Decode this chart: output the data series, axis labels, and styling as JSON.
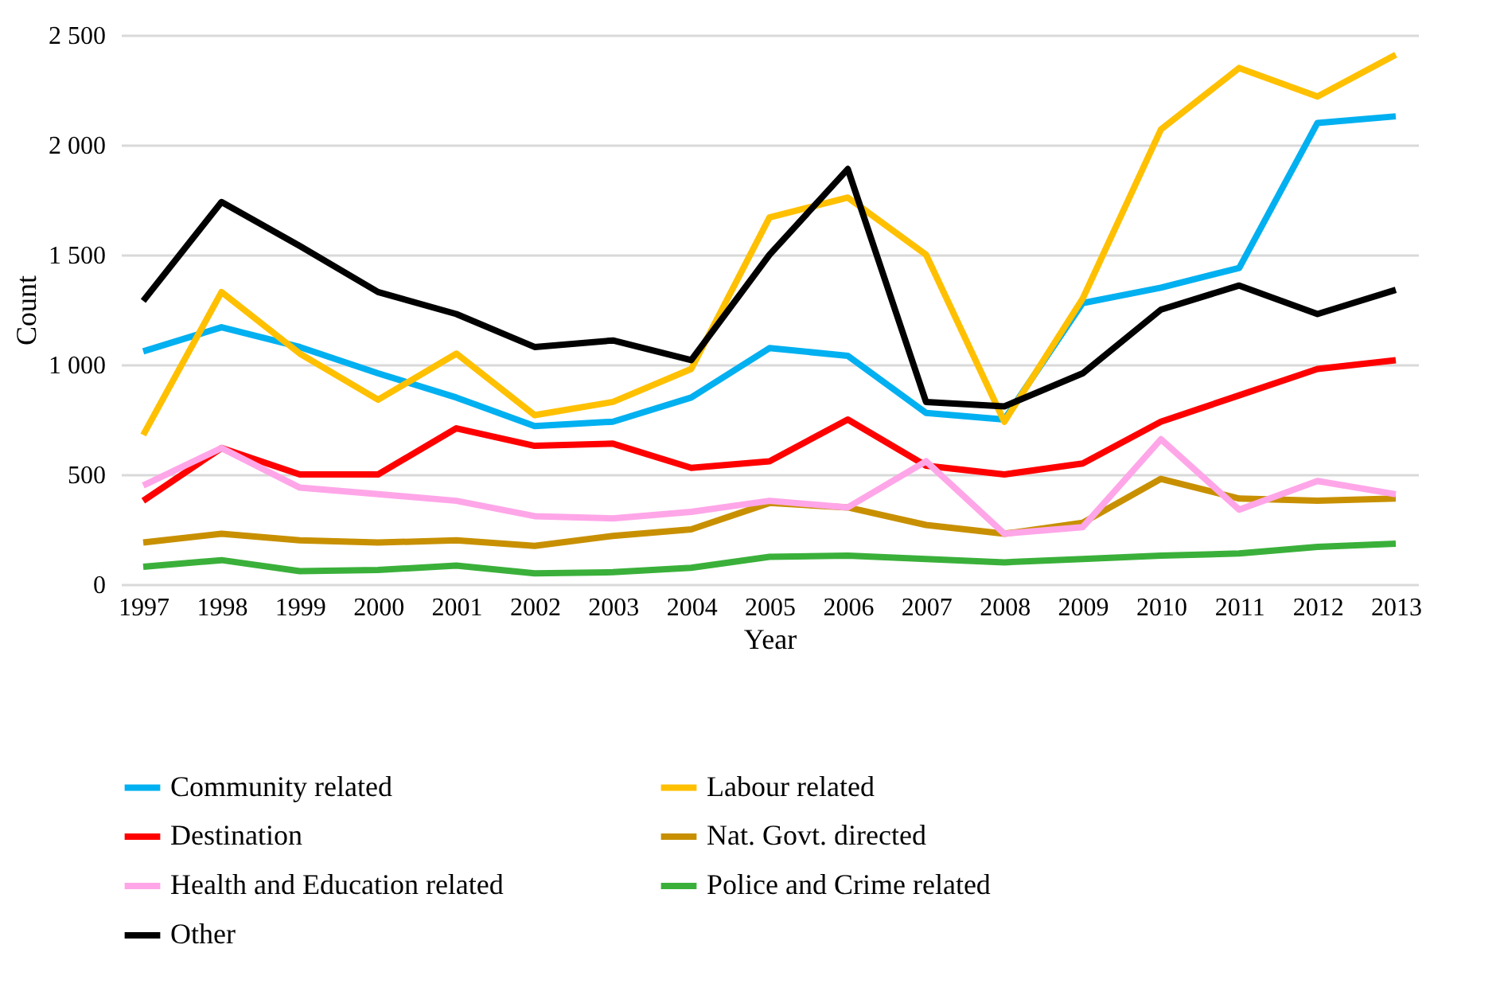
{
  "chart_data": {
    "type": "line",
    "xlabel": "Year",
    "ylabel": "Count",
    "categories": [
      "1997",
      "1998",
      "1999",
      "2000",
      "2001",
      "2002",
      "2003",
      "2004",
      "2005",
      "2006",
      "2007",
      "2008",
      "2009",
      "2010",
      "2011",
      "2012",
      "2013"
    ],
    "ylim": [
      0,
      2500
    ],
    "yticks": [
      0,
      500,
      {
        "value": 1000,
        "label": "1 000"
      },
      {
        "value": 1500,
        "label": "1 500"
      },
      {
        "value": 2000,
        "label": "2 000"
      },
      {
        "value": 2500,
        "label": "2 500"
      }
    ],
    "grid": "y",
    "legend": "bottom",
    "line_style": "solid",
    "series": [
      {
        "name": "Community related",
        "color": "#00b0f0",
        "values": [
          1060,
          1170,
          1080,
          960,
          850,
          720,
          740,
          850,
          1075,
          1040,
          780,
          750,
          1280,
          1350,
          1440,
          2100,
          2130
        ]
      },
      {
        "name": "Labour related",
        "color": "#ffc000",
        "values": [
          680,
          1330,
          1050,
          840,
          1050,
          770,
          830,
          980,
          1670,
          1760,
          1500,
          740,
          1300,
          2070,
          2350,
          2220,
          2410
        ]
      },
      {
        "name": "Destination",
        "color": "#ff0000",
        "values": [
          380,
          620,
          500,
          500,
          710,
          630,
          640,
          530,
          560,
          750,
          540,
          500,
          550,
          740,
          860,
          980,
          1020
        ]
      },
      {
        "name": "Nat. Govt. directed",
        "color": "#c89000",
        "values": [
          190,
          230,
          200,
          190,
          200,
          175,
          220,
          250,
          370,
          350,
          270,
          230,
          280,
          480,
          390,
          380,
          390
        ]
      },
      {
        "name": "Health and Education related",
        "color": "#ffa6e8",
        "values": [
          450,
          620,
          440,
          410,
          380,
          310,
          300,
          330,
          380,
          350,
          560,
          230,
          260,
          660,
          340,
          470,
          410
        ]
      },
      {
        "name": "Police and Crime related",
        "color": "#3ab03a",
        "values": [
          80,
          110,
          60,
          65,
          85,
          50,
          55,
          75,
          125,
          130,
          115,
          100,
          115,
          130,
          140,
          170,
          185
        ]
      },
      {
        "name": "Other",
        "color": "#000000",
        "values": [
          1290,
          1740,
          1540,
          1330,
          1230,
          1080,
          1110,
          1020,
          1500,
          1890,
          830,
          810,
          960,
          1250,
          1360,
          1230,
          1340
        ]
      }
    ]
  }
}
